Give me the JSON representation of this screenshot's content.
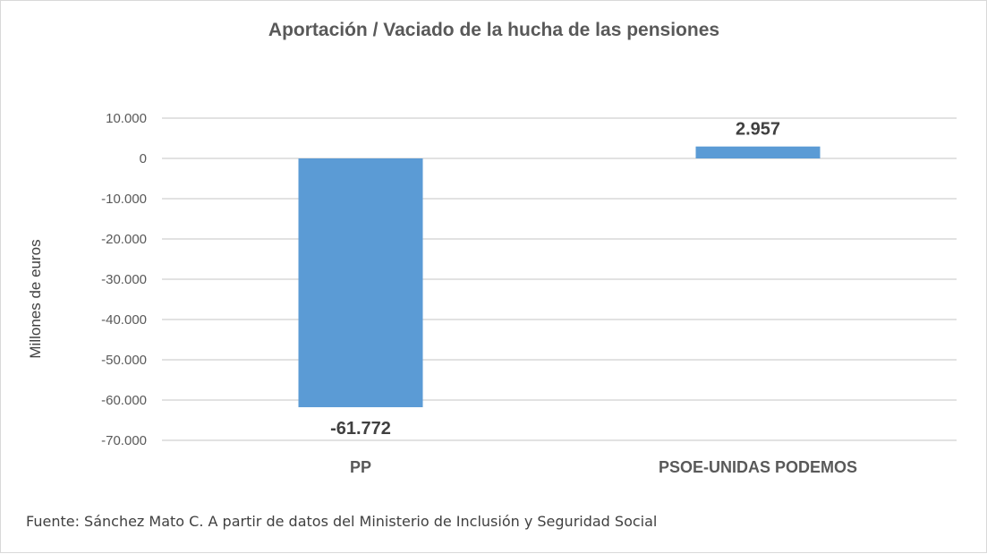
{
  "chart_data": {
    "type": "bar",
    "title": "Aportación / Vaciado de la hucha de las pensiones",
    "ylabel": "Millones de euros",
    "xlabel": "",
    "categories": [
      "PP",
      "PSOE-UNIDAS PODEMOS"
    ],
    "values": [
      -61772,
      2957
    ],
    "data_labels": [
      "-61.772",
      "2.957"
    ],
    "ylim": [
      -70000,
      10000
    ],
    "yticks": [
      10000,
      0,
      -10000,
      -20000,
      -30000,
      -40000,
      -50000,
      -60000,
      -70000
    ],
    "ytick_labels": [
      "10.000",
      "0",
      "-10.000",
      "-20.000",
      "-30.000",
      "-40.000",
      "-50.000",
      "-60.000",
      "-70.000"
    ],
    "grid": true,
    "legend": "none",
    "bar_color": "#5b9bd5",
    "grid_color": "#d9d9d9"
  },
  "source": "Fuente: Sánchez Mato C.  A partir de datos del Ministerio de Inclusión y Seguridad Social"
}
